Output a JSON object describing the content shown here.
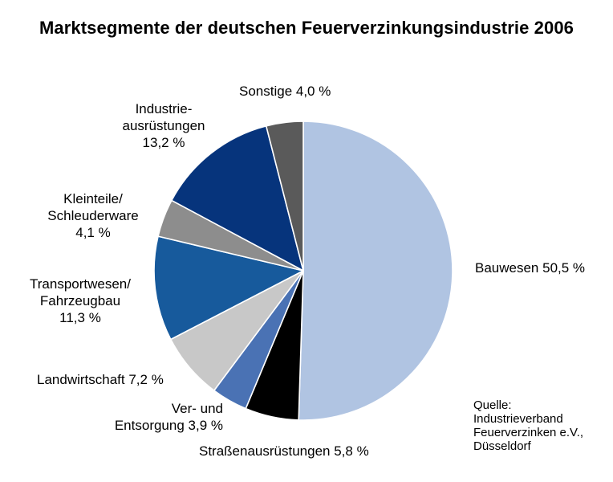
{
  "chart_data": {
    "type": "pie",
    "title": "Marktsegmente der deutschen Feuerverzinkungsindustrie 2006",
    "slices": [
      {
        "label": "Bauwesen",
        "value_text": "50,5 %",
        "value": 50.5,
        "color": "#b0c4e2"
      },
      {
        "label": "Straßenausrüstungen",
        "value_text": "5,8 %",
        "value": 5.8,
        "color": "#000000"
      },
      {
        "label": "Ver- und Entsorgung",
        "value_text": "3,9 %",
        "value": 3.9,
        "color": "#4a72b4"
      },
      {
        "label": "Landwirtschaft",
        "value_text": "7,2 %",
        "value": 7.2,
        "color": "#c8c8c8"
      },
      {
        "label": "Transportwesen/ Fahrzeugbau",
        "value_text": "11,3 %",
        "value": 11.3,
        "color": "#175a9c"
      },
      {
        "label": "Kleinteile/ Schleuderware",
        "value_text": "4,1 %",
        "value": 4.1,
        "color": "#8d8d8d"
      },
      {
        "label": "Industrie- ausrüstungen",
        "value_text": "13,2 %",
        "value": 13.2,
        "color": "#06347c"
      },
      {
        "label": "Sonstige",
        "value_text": "4,0 %",
        "value": 4.0,
        "color": "#5a5a5a"
      }
    ]
  },
  "labels": {
    "bauwesen": "Bauwesen 50,5 %",
    "strassen": "Straßenausrüstungen 5,8 %",
    "ver_line1": "Ver- und",
    "ver_line2": "Entsorgung 3,9 %",
    "landwirtschaft": "Landwirtschaft 7,2 %",
    "transport_line1": "Transportwesen/",
    "transport_line2": "Fahrzeugbau",
    "transport_line3": "11,3 %",
    "kleinteile_line1": "Kleinteile/",
    "kleinteile_line2": "Schleuderware",
    "kleinteile_line3": "4,1 %",
    "industrie_line1": "Industrie-",
    "industrie_line2": "ausrüstungen",
    "industrie_line3": "13,2 %",
    "sonstige": "Sonstige 4,0 %"
  },
  "source": {
    "line1": "Quelle:",
    "line2": "Industrieverband",
    "line3": "Feuerverzinken e.V.,",
    "line4": "Düsseldorf"
  }
}
